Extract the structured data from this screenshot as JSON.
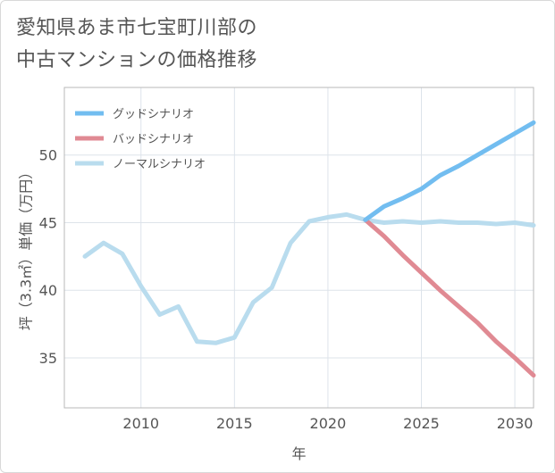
{
  "title": {
    "line1": "愛知県あま市七宝町川部の",
    "line2": "中古マンションの価格推移"
  },
  "chart_data": {
    "type": "line",
    "xlabel": "年",
    "ylabel": "坪（3.3㎡）単価（万円）",
    "xlim": [
      2005.9,
      2031
    ],
    "ylim": [
      31.3,
      55
    ],
    "xticks": [
      2010,
      2015,
      2020,
      2025,
      2030
    ],
    "yticks": [
      35,
      40,
      45,
      50
    ],
    "grid": true,
    "legend_position": "top-left",
    "series": [
      {
        "name": "グッドシナリオ",
        "color": "#72bdf0",
        "x": [
          2022,
          2023,
          2024,
          2025,
          2026,
          2027,
          2028,
          2029,
          2030,
          2031
        ],
        "values": [
          45.2,
          46.2,
          46.8,
          47.5,
          48.5,
          49.2,
          50.0,
          50.8,
          51.6,
          52.4
        ]
      },
      {
        "name": "バッドシナリオ",
        "color": "#e08a93",
        "x": [
          2022,
          2023,
          2024,
          2025,
          2026,
          2027,
          2028,
          2029,
          2030,
          2031
        ],
        "values": [
          45.2,
          44.0,
          42.6,
          41.3,
          40.0,
          38.8,
          37.6,
          36.2,
          35.0,
          33.7
        ]
      },
      {
        "name": "ノーマルシナリオ",
        "color": "#b9dcee",
        "x": [
          2007,
          2008,
          2009,
          2010,
          2011,
          2012,
          2013,
          2014,
          2015,
          2016,
          2017,
          2018,
          2019,
          2020,
          2021,
          2022,
          2023,
          2024,
          2025,
          2026,
          2027,
          2028,
          2029,
          2030,
          2031
        ],
        "values": [
          42.5,
          43.5,
          42.7,
          40.3,
          38.2,
          38.8,
          36.2,
          36.1,
          36.5,
          39.1,
          40.2,
          43.5,
          45.1,
          45.4,
          45.6,
          45.2,
          45.0,
          45.1,
          45.0,
          45.1,
          45.0,
          45.0,
          44.9,
          45.0,
          44.8
        ]
      }
    ]
  }
}
